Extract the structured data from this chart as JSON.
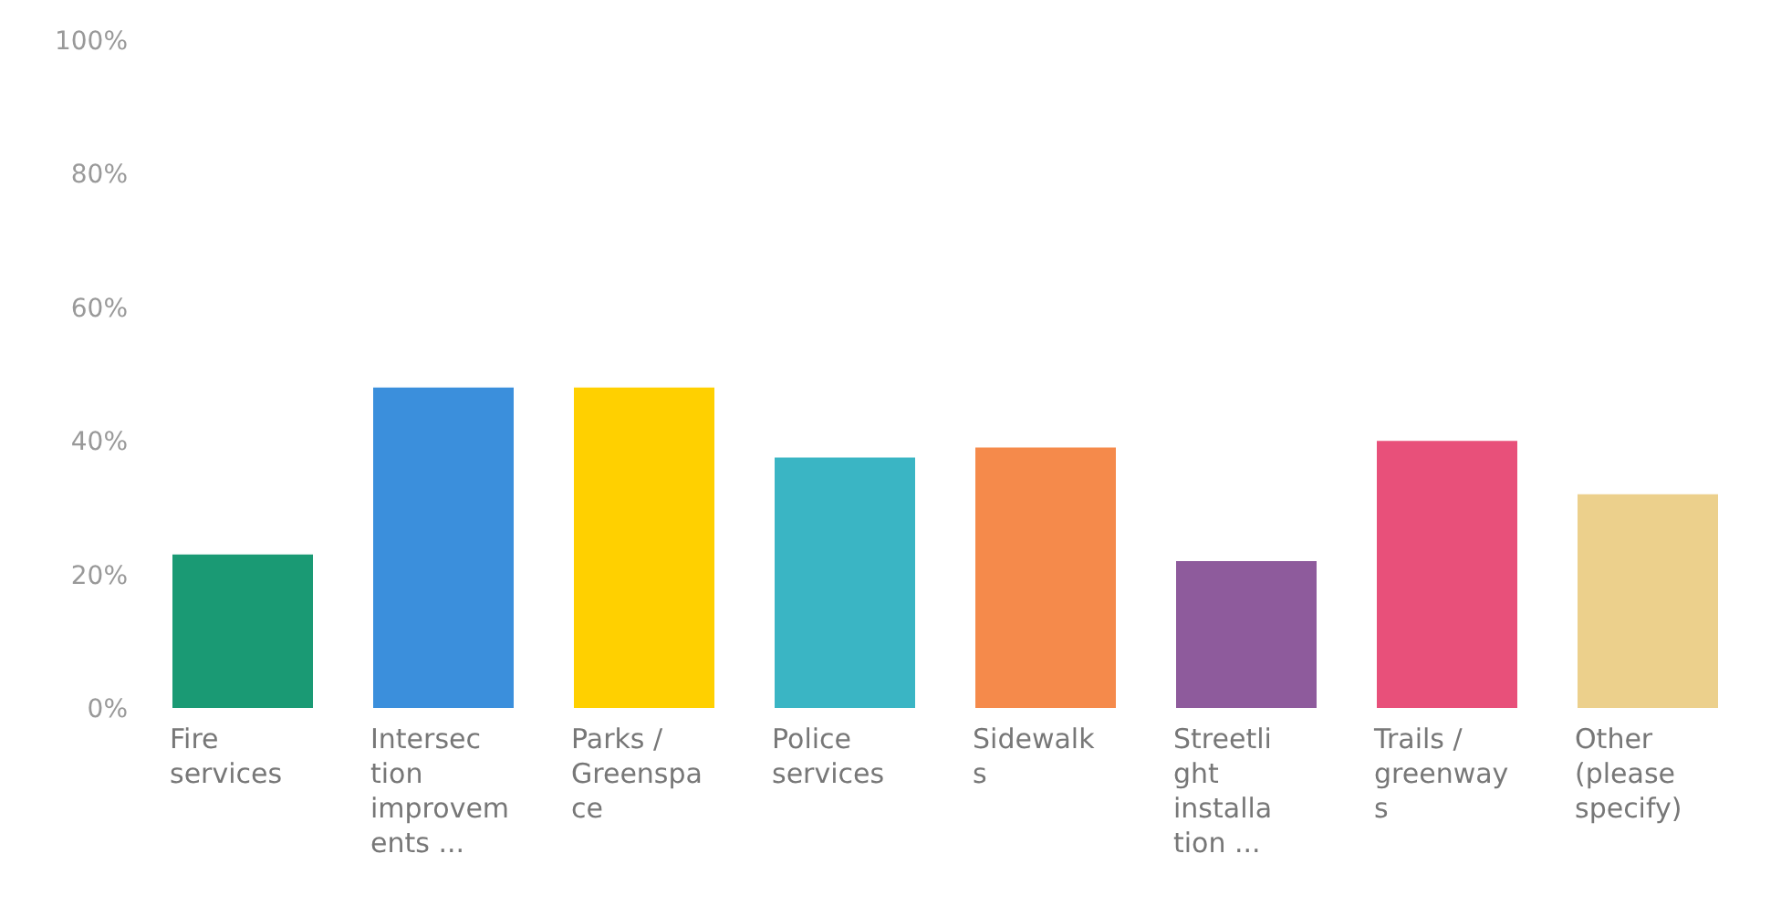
{
  "chart_data": {
    "type": "bar",
    "categories": [
      "Fire services",
      "Intersection improvements ...",
      "Parks / Greenspace",
      "Police services",
      "Sidewalks",
      "Streetlight installation ...",
      "Trails / greenways",
      "Other (please specify)"
    ],
    "values": [
      23,
      48,
      48,
      37.5,
      39,
      22,
      40,
      32
    ],
    "colors": [
      "#1a9a74",
      "#3b8fdc",
      "#ffd000",
      "#3ab5c4",
      "#f58a4b",
      "#8e5b9c",
      "#e8507a",
      "#ecd08c"
    ],
    "ylim": [
      0,
      100
    ],
    "yticks": [
      {
        "value": 0,
        "label": "0%"
      },
      {
        "value": 20,
        "label": "20%"
      },
      {
        "value": 40,
        "label": "40%"
      },
      {
        "value": 60,
        "label": "60%"
      },
      {
        "value": 80,
        "label": "80%"
      },
      {
        "value": 100,
        "label": "100%"
      }
    ],
    "grid": false
  }
}
